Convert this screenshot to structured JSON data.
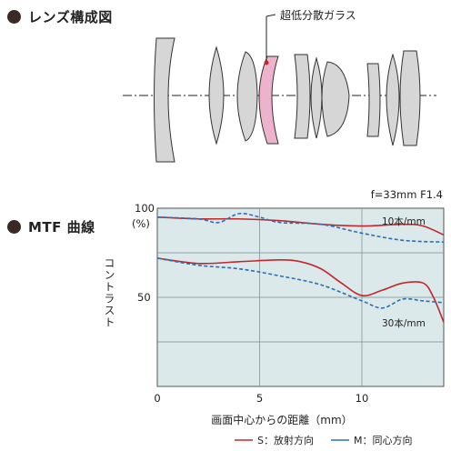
{
  "lens_section": {
    "heading": "レンズ構成図",
    "callout": "超低分散ガラス"
  },
  "mtf_section": {
    "heading": "MTF 曲線",
    "spec": "f=33mm F1.4",
    "y_unit": "(%)",
    "y_title": "コントラスト",
    "x_title": "画面中心からの距離（mm）",
    "curve_label_10": "10本/mm",
    "curve_label_30": "30本/mm",
    "legend_s": "S：放射方向",
    "legend_m": "M：同心方向"
  },
  "colors": {
    "sagittal": "#c0282d",
    "meridional": "#2a6fb3",
    "plot_bg": "#dce9ea",
    "ed_glass": "#eeb3cc",
    "lens_fill": "#d6d6d6"
  },
  "chart_data": {
    "type": "line",
    "xlabel": "画面中心からの距離（mm）",
    "ylabel": "コントラスト",
    "xlim": [
      0,
      14
    ],
    "ylim": [
      0,
      100
    ],
    "xticks": [
      "0",
      "5",
      "10"
    ],
    "yticks": [
      "100",
      "50"
    ],
    "grid": true,
    "series": [
      {
        "name": "10本/mm S",
        "style": "solid",
        "color": "#c0282d",
        "x": [
          0,
          2,
          4,
          6,
          8,
          10,
          12,
          13,
          14
        ],
        "y": [
          95,
          94,
          94,
          93,
          91,
          90,
          91,
          90,
          85
        ]
      },
      {
        "name": "10本/mm M",
        "style": "dashed",
        "color": "#2a6fb3",
        "x": [
          0,
          2,
          3,
          4,
          5,
          6,
          8,
          10,
          12,
          14
        ],
        "y": [
          95,
          94,
          92,
          97,
          95,
          92,
          91,
          86,
          82,
          81
        ]
      },
      {
        "name": "30本/mm S",
        "style": "solid",
        "color": "#c0282d",
        "x": [
          0,
          2,
          4,
          6,
          7,
          8,
          9,
          10,
          11,
          12,
          13,
          13.5,
          14
        ],
        "y": [
          72,
          69,
          70,
          71,
          70,
          66,
          58,
          51,
          54,
          58,
          58,
          50,
          36
        ]
      },
      {
        "name": "30本/mm M",
        "style": "dashed",
        "color": "#2a6fb3",
        "x": [
          0,
          2,
          4,
          6,
          8,
          10,
          11,
          12,
          13,
          14
        ],
        "y": [
          72,
          68,
          66,
          62,
          57,
          48,
          44,
          49,
          48,
          47
        ]
      }
    ]
  }
}
